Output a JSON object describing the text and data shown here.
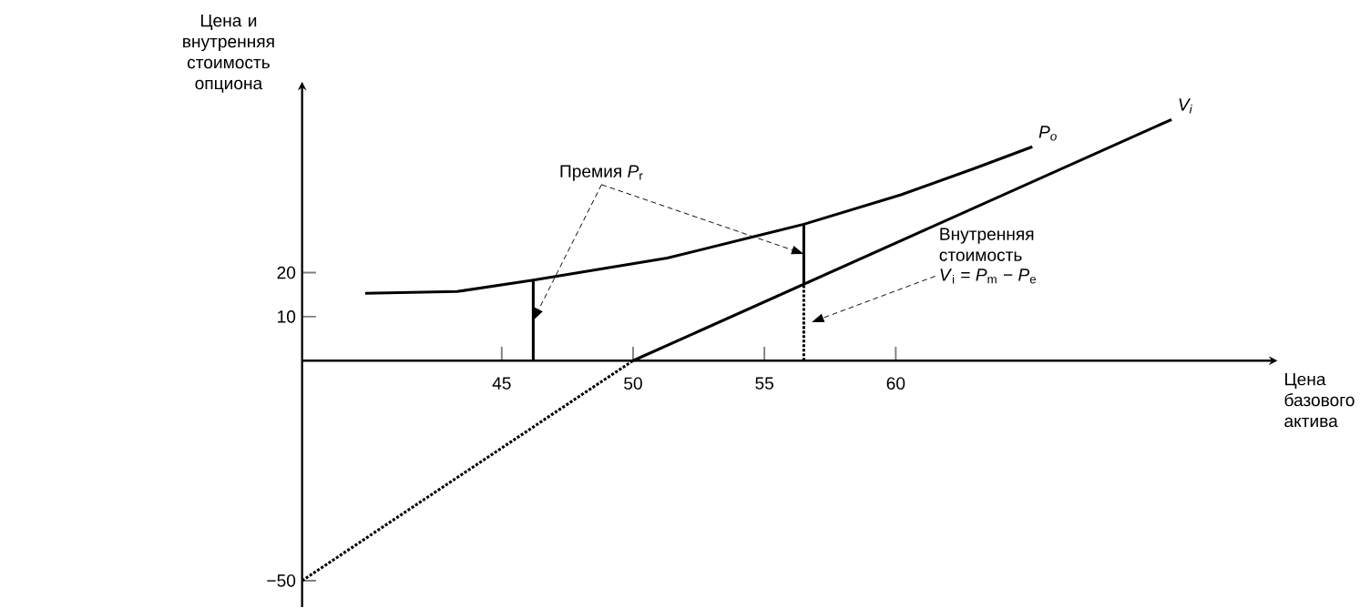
{
  "chart_data": {
    "type": "line",
    "xlabel": "Цена базового актива",
    "ylabel": "Цена и внутренняя стоимость опциона",
    "xlim": [
      37.4,
      74.3
    ],
    "ylim": [
      -56,
      62
    ],
    "xticks": [
      45,
      50,
      55,
      60
    ],
    "yticks": [
      {
        "value": -50,
        "label": "−50"
      },
      10,
      20
    ],
    "grid": false,
    "legend": false,
    "marker": "none",
    "series": [
      {
        "name": "*P*$_{o}$",
        "color": "#000000",
        "line_style": "solid",
        "x": [
          39.8,
          43.3,
          46.2,
          51.3,
          56.5,
          60.2,
          63,
          65.2
        ],
        "values": [
          15.3,
          15.7,
          18.3,
          23.3,
          31,
          37.7,
          43.7,
          48.6
        ]
      },
      {
        "name": "*V*$_{i}$",
        "color": "#000000",
        "line_style": "solid",
        "x": [
          50,
          70.5
        ],
        "values": [
          0,
          54.8
        ]
      },
      {
        "color": "#000000",
        "line_style": "dotted",
        "x": [
          37.4,
          50
        ],
        "values": [
          -50,
          0
        ]
      },
      {
        "color": "#000000",
        "line_style": "solid",
        "x": [
          46.2,
          46.2
        ],
        "values": [
          0,
          18.3
        ]
      },
      {
        "color": "#000000",
        "line_style": "solid",
        "x": [
          56.5,
          56.5
        ],
        "values": [
          17.5,
          31
        ]
      },
      {
        "color": "#000000",
        "line_style": "dotted",
        "x": [
          56.5,
          56.5
        ],
        "values": [
          0,
          17.5
        ]
      }
    ],
    "annotations": [
      {
        "text": "Премия *P*$_{r}$",
        "x": 46.2,
        "y": 9.15
      },
      "Внутренняя стоимость",
      "*V*$_{i}$ = *P*$_{m}$ − *P*$_{e}$"
    ]
  }
}
